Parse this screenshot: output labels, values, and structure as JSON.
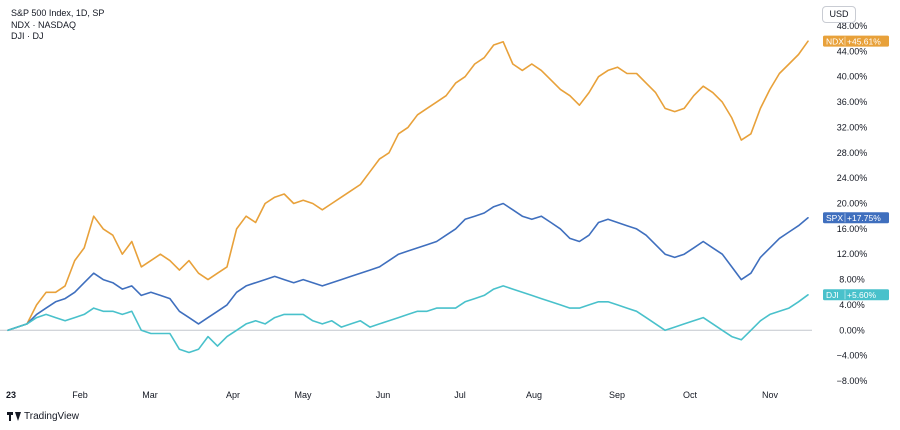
{
  "legend": {
    "line1": "S&P 500 Index, 1D, SP",
    "line2": "NDX · NASDAQ",
    "line3": "DJI · DJ"
  },
  "currency_label": "USD",
  "branding": "TradingView",
  "colors": {
    "ndx": "#e8a13a",
    "spx": "#3f6fbe",
    "dji": "#49c1cb",
    "axis_text": "#131722",
    "zero_line": "#c4c7ce",
    "badge_text": "#ffffff"
  },
  "chart_data": {
    "type": "line",
    "title": "S&P 500 Index, 1D, SP",
    "y_unit": "%",
    "ylim": [
      -8,
      48
    ],
    "y_ticks": [
      "48.00%",
      "44.00%",
      "40.00%",
      "36.00%",
      "32.00%",
      "28.00%",
      "24.00%",
      "20.00%",
      "16.00%",
      "12.00%",
      "8.00%",
      "4.00%",
      "0.00%",
      "−4.00%",
      "−8.00%"
    ],
    "x_ticks": [
      "23",
      "Feb",
      "Mar",
      "Apr",
      "May",
      "Jun",
      "Jul",
      "Aug",
      "Sep",
      "Oct",
      "Nov"
    ],
    "x_period": "2023-01-03 to 2023-11-15, daily",
    "grid": false,
    "series": [
      {
        "name": "NDX",
        "badge": "+45.61%",
        "values": [
          [
            0,
            0
          ],
          [
            1,
            1
          ],
          [
            1.5,
            4
          ],
          [
            2,
            6
          ],
          [
            2.5,
            6
          ],
          [
            3,
            7
          ],
          [
            3.5,
            11
          ],
          [
            4,
            13
          ],
          [
            4.5,
            18
          ],
          [
            5,
            16
          ],
          [
            5.5,
            15
          ],
          [
            6,
            12
          ],
          [
            6.5,
            14
          ],
          [
            7,
            10
          ],
          [
            7.5,
            11
          ],
          [
            8,
            12
          ],
          [
            8.5,
            11
          ],
          [
            9,
            9.5
          ],
          [
            9.5,
            11
          ],
          [
            10,
            9
          ],
          [
            10.5,
            8
          ],
          [
            11,
            9
          ],
          [
            11.5,
            10
          ],
          [
            12,
            16
          ],
          [
            12.5,
            18
          ],
          [
            13,
            17
          ],
          [
            13.5,
            20
          ],
          [
            14,
            21
          ],
          [
            14.5,
            21.5
          ],
          [
            15,
            20
          ],
          [
            15.5,
            20.5
          ],
          [
            16,
            20
          ],
          [
            16.5,
            19
          ],
          [
            17,
            20
          ],
          [
            17.5,
            21
          ],
          [
            18,
            22
          ],
          [
            18.5,
            23
          ],
          [
            19,
            25
          ],
          [
            19.5,
            27
          ],
          [
            20,
            28
          ],
          [
            20.5,
            31
          ],
          [
            21,
            32
          ],
          [
            21.5,
            34
          ],
          [
            22,
            35
          ],
          [
            22.5,
            36
          ],
          [
            23,
            37
          ],
          [
            23.5,
            39
          ],
          [
            24,
            40
          ],
          [
            24.5,
            42
          ],
          [
            25,
            43
          ],
          [
            25.5,
            45
          ],
          [
            26,
            45.5
          ],
          [
            26.5,
            42
          ],
          [
            27,
            41
          ],
          [
            27.5,
            42
          ],
          [
            28,
            41
          ],
          [
            28.5,
            39.5
          ],
          [
            29,
            38
          ],
          [
            29.5,
            37
          ],
          [
            30,
            35.5
          ],
          [
            30.5,
            37.5
          ],
          [
            31,
            40
          ],
          [
            31.5,
            41
          ],
          [
            32,
            41.5
          ],
          [
            32.5,
            40.5
          ],
          [
            33,
            40.5
          ],
          [
            33.5,
            39
          ],
          [
            34,
            37.5
          ],
          [
            34.5,
            35
          ],
          [
            35,
            34.5
          ],
          [
            35.5,
            35
          ],
          [
            36,
            37
          ],
          [
            36.5,
            38.5
          ],
          [
            37,
            37.5
          ],
          [
            37.5,
            36
          ],
          [
            38,
            33.5
          ],
          [
            38.5,
            30
          ],
          [
            39,
            31
          ],
          [
            39.5,
            35
          ],
          [
            40,
            38
          ],
          [
            40.5,
            40.5
          ],
          [
            41,
            42
          ],
          [
            41.5,
            43.5
          ],
          [
            42,
            45.61
          ]
        ]
      },
      {
        "name": "SPX",
        "badge": "+17.75%",
        "values": [
          [
            0,
            0
          ],
          [
            1,
            1
          ],
          [
            1.5,
            2.5
          ],
          [
            2,
            3.5
          ],
          [
            2.5,
            4.5
          ],
          [
            3,
            5
          ],
          [
            3.5,
            6
          ],
          [
            4,
            7.5
          ],
          [
            4.5,
            9
          ],
          [
            5,
            8
          ],
          [
            5.5,
            7.5
          ],
          [
            6,
            6.5
          ],
          [
            6.5,
            7
          ],
          [
            7,
            5.5
          ],
          [
            7.5,
            6
          ],
          [
            8,
            5.5
          ],
          [
            8.5,
            5
          ],
          [
            9,
            3
          ],
          [
            9.5,
            2
          ],
          [
            10,
            1
          ],
          [
            10.5,
            2
          ],
          [
            11,
            3
          ],
          [
            11.5,
            4
          ],
          [
            12,
            6
          ],
          [
            12.5,
            7
          ],
          [
            13,
            7.5
          ],
          [
            13.5,
            8
          ],
          [
            14,
            8.5
          ],
          [
            14.5,
            8
          ],
          [
            15,
            7.5
          ],
          [
            15.5,
            8
          ],
          [
            16,
            7.5
          ],
          [
            16.5,
            7
          ],
          [
            17,
            7.5
          ],
          [
            17.5,
            8
          ],
          [
            18,
            8.5
          ],
          [
            18.5,
            9
          ],
          [
            19,
            9.5
          ],
          [
            19.5,
            10
          ],
          [
            20,
            11
          ],
          [
            20.5,
            12
          ],
          [
            21,
            12.5
          ],
          [
            21.5,
            13
          ],
          [
            22,
            13.5
          ],
          [
            22.5,
            14
          ],
          [
            23,
            15
          ],
          [
            23.5,
            16
          ],
          [
            24,
            17.5
          ],
          [
            24.5,
            18
          ],
          [
            25,
            18.5
          ],
          [
            25.5,
            19.5
          ],
          [
            26,
            20
          ],
          [
            26.5,
            19
          ],
          [
            27,
            18
          ],
          [
            27.5,
            17.5
          ],
          [
            28,
            18
          ],
          [
            28.5,
            17
          ],
          [
            29,
            16
          ],
          [
            29.5,
            14.5
          ],
          [
            30,
            14
          ],
          [
            30.5,
            15
          ],
          [
            31,
            17
          ],
          [
            31.5,
            17.5
          ],
          [
            32,
            17
          ],
          [
            32.5,
            16.5
          ],
          [
            33,
            16
          ],
          [
            33.5,
            15
          ],
          [
            34,
            13.5
          ],
          [
            34.5,
            12
          ],
          [
            35,
            11.5
          ],
          [
            35.5,
            12
          ],
          [
            36,
            13
          ],
          [
            36.5,
            14
          ],
          [
            37,
            13
          ],
          [
            37.5,
            12
          ],
          [
            38,
            10
          ],
          [
            38.5,
            8
          ],
          [
            39,
            9
          ],
          [
            39.5,
            11.5
          ],
          [
            40,
            13
          ],
          [
            40.5,
            14.5
          ],
          [
            41,
            15.5
          ],
          [
            41.5,
            16.5
          ],
          [
            42,
            17.75
          ]
        ]
      },
      {
        "name": "DJI",
        "badge": "+5.60%",
        "values": [
          [
            0,
            0
          ],
          [
            1,
            1
          ],
          [
            1.5,
            2
          ],
          [
            2,
            2.5
          ],
          [
            2.5,
            2
          ],
          [
            3,
            1.5
          ],
          [
            3.5,
            2
          ],
          [
            4,
            2.5
          ],
          [
            4.5,
            3.5
          ],
          [
            5,
            3
          ],
          [
            5.5,
            3
          ],
          [
            6,
            2.5
          ],
          [
            6.5,
            3
          ],
          [
            7,
            0
          ],
          [
            7.5,
            -0.5
          ],
          [
            8,
            -0.5
          ],
          [
            8.5,
            -0.5
          ],
          [
            9,
            -3
          ],
          [
            9.5,
            -3.5
          ],
          [
            10,
            -3
          ],
          [
            10.5,
            -1
          ],
          [
            11,
            -2.5
          ],
          [
            11.5,
            -1
          ],
          [
            12,
            0
          ],
          [
            12.5,
            1
          ],
          [
            13,
            1.5
          ],
          [
            13.5,
            1
          ],
          [
            14,
            2
          ],
          [
            14.5,
            2.5
          ],
          [
            15,
            2.5
          ],
          [
            15.5,
            2.5
          ],
          [
            16,
            1.5
          ],
          [
            16.5,
            1
          ],
          [
            17,
            1.5
          ],
          [
            17.5,
            0.5
          ],
          [
            18,
            1
          ],
          [
            18.5,
            1.5
          ],
          [
            19,
            0.5
          ],
          [
            19.5,
            1
          ],
          [
            20,
            1.5
          ],
          [
            20.5,
            2
          ],
          [
            21,
            2.5
          ],
          [
            21.5,
            3
          ],
          [
            22,
            3
          ],
          [
            22.5,
            3.5
          ],
          [
            23,
            3.5
          ],
          [
            23.5,
            3.5
          ],
          [
            24,
            4.5
          ],
          [
            24.5,
            5
          ],
          [
            25,
            5.5
          ],
          [
            25.5,
            6.5
          ],
          [
            26,
            7
          ],
          [
            26.5,
            6.5
          ],
          [
            27,
            6
          ],
          [
            27.5,
            5.5
          ],
          [
            28,
            5
          ],
          [
            28.5,
            4.5
          ],
          [
            29,
            4
          ],
          [
            29.5,
            3.5
          ],
          [
            30,
            3.5
          ],
          [
            30.5,
            4
          ],
          [
            31,
            4.5
          ],
          [
            31.5,
            4.5
          ],
          [
            32,
            4
          ],
          [
            32.5,
            3.5
          ],
          [
            33,
            3
          ],
          [
            33.5,
            2
          ],
          [
            34,
            1
          ],
          [
            34.5,
            0
          ],
          [
            35,
            0.5
          ],
          [
            35.5,
            1
          ],
          [
            36,
            1.5
          ],
          [
            36.5,
            2
          ],
          [
            37,
            1
          ],
          [
            37.5,
            0
          ],
          [
            38,
            -1
          ],
          [
            38.5,
            -1.5
          ],
          [
            39,
            0
          ],
          [
            39.5,
            1.5
          ],
          [
            40,
            2.5
          ],
          [
            40.5,
            3
          ],
          [
            41,
            3.5
          ],
          [
            41.5,
            4.5
          ],
          [
            42,
            5.6
          ]
        ]
      }
    ]
  }
}
